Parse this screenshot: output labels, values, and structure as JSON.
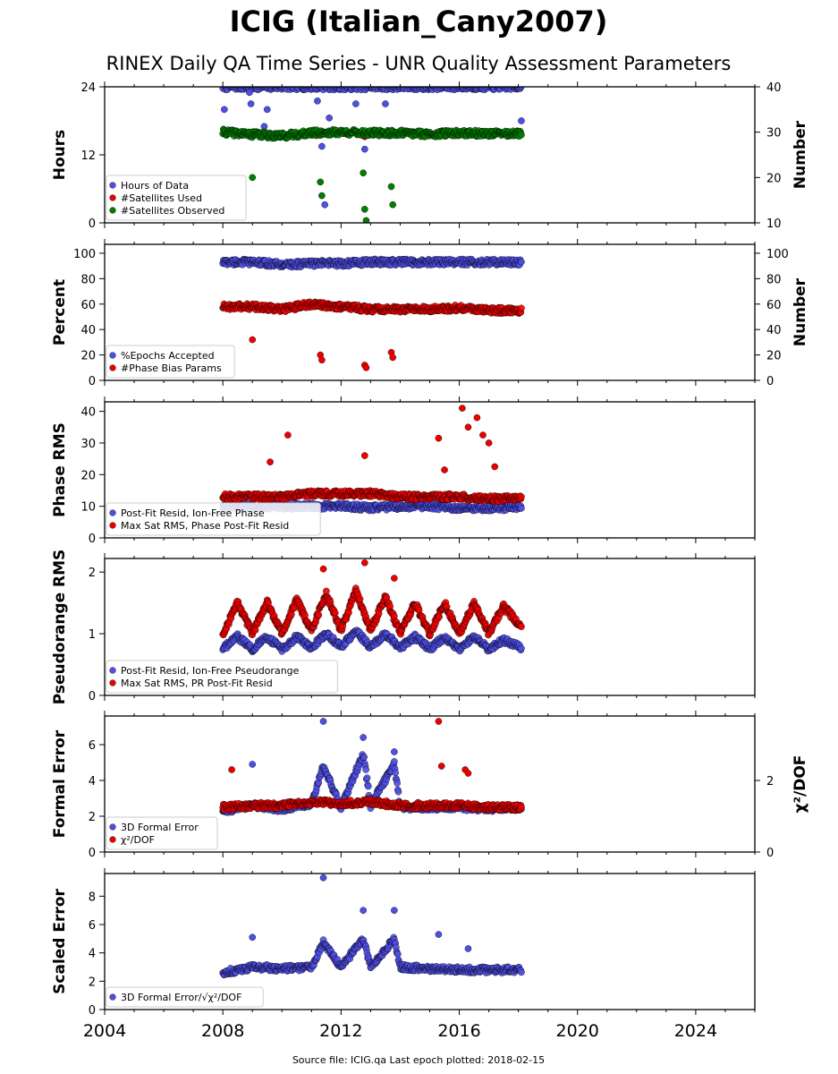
{
  "title": "ICIG (Italian_Cany2007)",
  "subtitle": "RINEX Daily QA Time Series - UNR Quality Assessment Parameters",
  "footer": "Source file: ICIG.qa Last epoch plotted: 2018-02-15",
  "colors": {
    "blue": "#4f4fe8",
    "red": "#ee0000",
    "green": "#008000"
  },
  "chart_data": [
    {
      "type": "scatter",
      "ylabel": "Hours",
      "ylabel_right": "Number",
      "xlim": [
        2004,
        2026
      ],
      "ylim": [
        0,
        24
      ],
      "ylim_right": [
        10,
        40
      ],
      "yticks": [
        0,
        12,
        24
      ],
      "yticks_right": [
        10,
        20,
        30,
        40
      ],
      "legend": "lower-left",
      "series": [
        {
          "name": "Hours of Data",
          "color": "blue",
          "axis": "left",
          "x": [
            2008.0,
            2009.0,
            2010.0,
            2011.0,
            2012.0,
            2013.0,
            2014.0,
            2015.0,
            2016.0,
            2017.0,
            2018.1
          ],
          "y": [
            24.0,
            24.0,
            24.0,
            24.0,
            24.0,
            24.0,
            24.0,
            24.0,
            24.0,
            24.0,
            24.0
          ],
          "outliers_x": [
            2008.05,
            2008.9,
            2008.95,
            2009.4,
            2009.5,
            2011.2,
            2011.35,
            2011.45,
            2011.6,
            2012.5,
            2012.8,
            2013.5,
            2018.1
          ],
          "outliers_y": [
            20.0,
            23.0,
            21.0,
            17.0,
            20.0,
            21.5,
            13.5,
            3.2,
            18.5,
            21.0,
            13.0,
            21.0,
            18.0
          ]
        },
        {
          "name": "#Satellites Used",
          "color": "red",
          "axis": "right",
          "x": [
            2009.0,
            2010.0,
            2011.5,
            2012.8
          ],
          "y": [
            30.0,
            29.0,
            29.5,
            29.0
          ]
        },
        {
          "name": "#Satellites Observed",
          "color": "green",
          "axis": "right",
          "x": [
            2008.0,
            2009.0,
            2010.0,
            2011.0,
            2012.0,
            2013.0,
            2014.0,
            2015.0,
            2016.0,
            2017.0,
            2018.1
          ],
          "y": [
            30.0,
            29.5,
            29.2,
            29.8,
            30.0,
            29.8,
            29.8,
            29.6,
            29.8,
            29.7,
            29.6
          ],
          "outliers_x": [
            2009.0,
            2011.3,
            2011.35,
            2012.75,
            2012.8,
            2012.85,
            2013.7,
            2013.75
          ],
          "outliers_y": [
            20.0,
            19.0,
            16.0,
            21.0,
            13.0,
            10.5,
            18.0,
            14.0
          ]
        }
      ]
    },
    {
      "type": "scatter",
      "ylabel": "Percent",
      "ylabel_right": "Number",
      "xlim": [
        2004,
        2026
      ],
      "ylim": [
        0,
        107
      ],
      "ylim_right": [
        0,
        107
      ],
      "yticks": [
        0,
        20,
        40,
        60,
        80,
        100
      ],
      "yticks_right": [
        0,
        20,
        40,
        60,
        80,
        100
      ],
      "legend": "lower-left",
      "series": [
        {
          "name": "%Epochs Accepted",
          "color": "blue",
          "axis": "left",
          "x": [
            2008.0,
            2009.0,
            2010.0,
            2011.0,
            2012.0,
            2013.0,
            2014.0,
            2015.0,
            2016.0,
            2017.0,
            2018.1
          ],
          "y": [
            93.0,
            93.0,
            91.0,
            92.0,
            92.0,
            93.0,
            93.0,
            93.0,
            93.0,
            93.0,
            93.0
          ]
        },
        {
          "name": "#Phase Bias Params",
          "color": "red",
          "axis": "right",
          "x": [
            2008.0,
            2009.0,
            2010.0,
            2011.0,
            2012.0,
            2013.0,
            2014.0,
            2015.0,
            2016.0,
            2017.0,
            2018.1
          ],
          "y": [
            58.0,
            58.0,
            56.0,
            60.0,
            58.0,
            56.0,
            56.0,
            56.0,
            57.0,
            55.0,
            55.0
          ],
          "outliers_x": [
            2009.0,
            2011.3,
            2011.35,
            2012.8,
            2012.85,
            2013.7,
            2013.75
          ],
          "outliers_y": [
            32.0,
            20.0,
            16.0,
            12.0,
            10.0,
            22.0,
            18.0
          ]
        }
      ]
    },
    {
      "type": "scatter",
      "ylabel": "Phase RMS",
      "xlim": [
        2004,
        2026
      ],
      "ylim": [
        0,
        43
      ],
      "yticks": [
        0,
        10,
        20,
        30,
        40
      ],
      "legend": "lower-left",
      "series": [
        {
          "name": "Post-Fit Resid, Ion-Free Phase",
          "color": "blue",
          "x": [
            2008.0,
            2009.0,
            2010.0,
            2011.0,
            2012.0,
            2013.0,
            2014.0,
            2015.0,
            2016.0,
            2017.0,
            2018.1
          ],
          "y": [
            10.0,
            10.0,
            10.0,
            10.0,
            10.0,
            9.5,
            10.0,
            10.0,
            9.5,
            9.5,
            9.5
          ]
        },
        {
          "name": "Max Sat RMS, Phase Post-Fit Resid",
          "color": "red",
          "x": [
            2008.0,
            2009.0,
            2010.0,
            2011.0,
            2012.0,
            2013.0,
            2014.0,
            2015.0,
            2016.0,
            2017.0,
            2018.1
          ],
          "y": [
            13.0,
            13.0,
            13.0,
            14.0,
            14.0,
            14.0,
            13.0,
            13.0,
            13.0,
            12.5,
            12.5
          ],
          "outliers_x": [
            2009.6,
            2010.2,
            2012.8,
            2015.3,
            2015.5,
            2016.1,
            2016.3,
            2016.6,
            2016.8,
            2017.0,
            2017.2
          ],
          "outliers_y": [
            24.0,
            32.5,
            26.0,
            31.5,
            21.5,
            41.0,
            35.0,
            38.0,
            32.5,
            30.0,
            22.5
          ]
        }
      ]
    },
    {
      "type": "scatter",
      "ylabel": "Pseudorange RMS",
      "xlim": [
        2004,
        2026
      ],
      "ylim": [
        0,
        2.22
      ],
      "yticks": [
        0,
        1,
        2
      ],
      "legend": "lower-left",
      "series": [
        {
          "name": "Post-Fit Resid, Ion-Free Pseudorange",
          "color": "blue",
          "x": [
            2008.0,
            2008.5,
            2009.0,
            2009.5,
            2010.0,
            2010.5,
            2011.0,
            2011.5,
            2012.0,
            2012.5,
            2013.0,
            2013.5,
            2014.0,
            2014.5,
            2015.0,
            2015.5,
            2016.0,
            2016.5,
            2017.0,
            2017.5,
            2018.1
          ],
          "y": [
            0.75,
            0.95,
            0.75,
            0.95,
            0.75,
            0.95,
            0.78,
            1.0,
            0.78,
            1.05,
            0.78,
            1.0,
            0.78,
            0.95,
            0.75,
            0.95,
            0.75,
            0.95,
            0.75,
            0.9,
            0.78
          ]
        },
        {
          "name": "Max Sat RMS, PR Post-Fit Resid",
          "color": "red",
          "x": [
            2008.0,
            2008.5,
            2009.0,
            2009.5,
            2010.0,
            2010.5,
            2011.0,
            2011.5,
            2012.0,
            2012.5,
            2013.0,
            2013.5,
            2014.0,
            2014.5,
            2015.0,
            2015.5,
            2016.0,
            2016.5,
            2017.0,
            2017.5,
            2018.1
          ],
          "y": [
            1.0,
            1.5,
            1.0,
            1.5,
            1.0,
            1.55,
            1.05,
            1.65,
            1.05,
            1.7,
            1.05,
            1.6,
            1.0,
            1.5,
            1.0,
            1.5,
            1.0,
            1.5,
            1.0,
            1.45,
            1.1
          ],
          "outliers_x": [
            2011.4,
            2012.8,
            2013.8
          ],
          "outliers_y": [
            2.05,
            2.15,
            1.9
          ]
        }
      ]
    },
    {
      "type": "scatter",
      "ylabel": "Formal Error",
      "ylabel_right": "χ²/DOF",
      "xlim": [
        2004,
        2026
      ],
      "ylim": [
        0,
        7.6
      ],
      "ylim_right": [
        0,
        3.8
      ],
      "yticks": [
        0,
        2,
        4,
        6
      ],
      "yticks_right": [
        0,
        2
      ],
      "legend": "lower-left",
      "series": [
        {
          "name": "3D Formal Error",
          "color": "blue",
          "axis": "left",
          "x": [
            2008.0,
            2009.0,
            2010.0,
            2011.0,
            2011.4,
            2012.0,
            2012.75,
            2013.0,
            2013.8,
            2014.0,
            2015.0,
            2016.0,
            2017.0,
            2018.1
          ],
          "y": [
            2.3,
            2.6,
            2.4,
            2.7,
            4.8,
            2.5,
            5.5,
            2.6,
            4.9,
            2.5,
            2.5,
            2.5,
            2.4,
            2.5
          ],
          "outliers_x": [
            2009.0,
            2011.4,
            2012.75,
            2013.8
          ],
          "outliers_y": [
            4.9,
            7.3,
            6.4,
            5.6
          ]
        },
        {
          "name": "χ²/DOF",
          "color": "red",
          "axis": "right",
          "x": [
            2008.0,
            2009.0,
            2010.0,
            2011.0,
            2012.0,
            2013.0,
            2014.0,
            2015.0,
            2016.0,
            2017.0,
            2018.1
          ],
          "y": [
            1.25,
            1.3,
            1.3,
            1.4,
            1.35,
            1.4,
            1.3,
            1.3,
            1.3,
            1.25,
            1.25
          ],
          "outliers_x": [
            2008.3,
            2015.3,
            2015.4,
            2016.2,
            2016.3
          ],
          "outliers_y": [
            2.3,
            3.65,
            2.4,
            2.3,
            2.2
          ]
        }
      ]
    },
    {
      "type": "scatter",
      "ylabel": "Scaled Error",
      "xlim": [
        2004,
        2026
      ],
      "ylim": [
        0,
        9.6
      ],
      "yticks": [
        0,
        2,
        4,
        6,
        8
      ],
      "xticks": [
        2004,
        2008,
        2012,
        2016,
        2020,
        2024
      ],
      "legend": "lower-left",
      "series": [
        {
          "name": "3D Formal Error/√χ²/DOF",
          "color": "blue",
          "x": [
            2008.0,
            2009.0,
            2010.0,
            2011.0,
            2011.4,
            2012.0,
            2012.75,
            2013.0,
            2013.8,
            2014.0,
            2015.0,
            2016.0,
            2017.0,
            2018.1
          ],
          "y": [
            2.6,
            3.0,
            2.9,
            3.0,
            4.8,
            3.0,
            5.0,
            3.0,
            5.0,
            3.0,
            2.9,
            2.8,
            2.8,
            2.8
          ],
          "outliers_x": [
            2009.0,
            2011.4,
            2012.75,
            2013.8,
            2015.3,
            2016.3
          ],
          "outliers_y": [
            5.1,
            9.3,
            7.0,
            7.0,
            5.3,
            4.3
          ]
        }
      ]
    }
  ]
}
